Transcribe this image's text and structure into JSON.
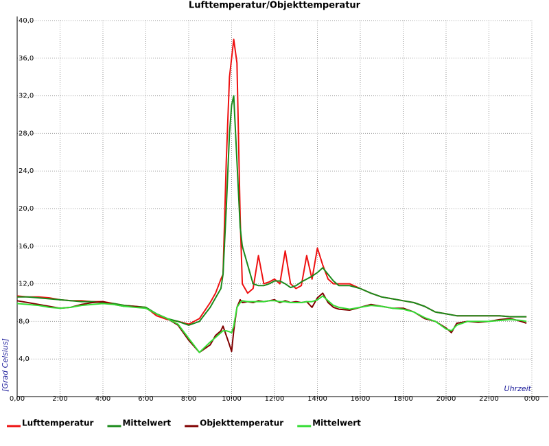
{
  "chart_data": {
    "type": "line",
    "title": "Lufttemperatur/Objekttemperatur",
    "y_label": "[Grad Celsius]",
    "x_label": "Uhrzeit",
    "x": [
      0,
      0.5,
      1,
      1.5,
      2,
      2.5,
      3,
      3.5,
      4,
      4.5,
      5,
      5.5,
      6,
      6.5,
      7,
      7.5,
      8,
      8.5,
      9,
      9.25,
      9.5,
      9.6,
      9.75,
      9.9,
      10,
      10.1,
      10.25,
      10.4,
      10.5,
      10.75,
      11,
      11.25,
      11.5,
      11.75,
      12,
      12.25,
      12.5,
      12.75,
      13,
      13.25,
      13.5,
      13.75,
      14,
      14.25,
      14.5,
      14.75,
      15,
      15.5,
      16,
      16.5,
      17,
      17.5,
      18,
      18.5,
      19,
      19.5,
      20,
      20.25,
      20.5,
      21,
      21.5,
      22,
      22.5,
      23,
      23.5,
      23.75
    ],
    "series": [
      {
        "name": "Lufttemperatur",
        "color": "#ee1111",
        "values": [
          10.7,
          10.6,
          10.6,
          10.5,
          10.3,
          10.2,
          10.2,
          10.1,
          10.1,
          9.9,
          9.7,
          9.6,
          9.5,
          8.6,
          8.2,
          8.0,
          7.7,
          8.3,
          10.0,
          11.0,
          12.5,
          13.0,
          25.0,
          34.0,
          36.0,
          38.0,
          35.5,
          19.0,
          12.0,
          11.0,
          11.5,
          15.0,
          12.0,
          12.2,
          12.5,
          12.0,
          15.5,
          12.0,
          11.5,
          11.8,
          15.0,
          12.5,
          15.8,
          14.0,
          12.5,
          12.0,
          12.0,
          12.0,
          11.5,
          11.0,
          10.6,
          10.4,
          10.2,
          10.0,
          9.6,
          9.0,
          8.8,
          8.7,
          8.6,
          8.6,
          8.6,
          8.6,
          8.6,
          8.5,
          8.5,
          8.5
        ]
      },
      {
        "name": "Mittelwert",
        "color": "#1a8a1a",
        "values": [
          10.6,
          10.6,
          10.5,
          10.4,
          10.3,
          10.2,
          10.1,
          10.1,
          10.0,
          9.9,
          9.7,
          9.6,
          9.5,
          8.8,
          8.3,
          8.0,
          7.6,
          8.0,
          9.5,
          10.5,
          11.5,
          13.0,
          20.0,
          28.0,
          31.0,
          32.0,
          25.0,
          18.0,
          16.0,
          14.0,
          12.0,
          11.8,
          11.8,
          12.0,
          12.3,
          12.3,
          12.0,
          11.6,
          11.8,
          12.2,
          12.5,
          12.8,
          13.2,
          13.7,
          13.0,
          12.3,
          11.8,
          11.8,
          11.5,
          11.0,
          10.6,
          10.4,
          10.2,
          10.0,
          9.6,
          9.0,
          8.8,
          8.7,
          8.6,
          8.6,
          8.6,
          8.6,
          8.6,
          8.5,
          8.5,
          8.5
        ]
      },
      {
        "name": "Objekttemperatur",
        "color": "#800000",
        "values": [
          10.2,
          10.0,
          9.8,
          9.6,
          9.4,
          9.5,
          9.8,
          10.0,
          10.1,
          9.8,
          9.6,
          9.6,
          9.4,
          8.8,
          8.3,
          7.6,
          6.0,
          4.7,
          5.5,
          6.5,
          7.0,
          7.5,
          6.5,
          5.5,
          4.8,
          7.0,
          9.5,
          10.3,
          10.0,
          10.1,
          10.0,
          10.2,
          10.1,
          10.2,
          10.3,
          10.0,
          10.2,
          10.0,
          10.1,
          10.0,
          10.1,
          9.5,
          10.5,
          11.0,
          10.0,
          9.5,
          9.3,
          9.2,
          9.5,
          9.8,
          9.6,
          9.4,
          9.4,
          9.0,
          8.3,
          8.0,
          7.3,
          6.8,
          7.8,
          8.0,
          7.9,
          8.0,
          8.2,
          8.3,
          8.0,
          7.8
        ]
      },
      {
        "name": "Mittelwert",
        "color": "#33dd33",
        "values": [
          9.9,
          9.8,
          9.7,
          9.5,
          9.4,
          9.5,
          9.7,
          9.8,
          9.9,
          9.8,
          9.6,
          9.5,
          9.4,
          8.8,
          8.3,
          7.7,
          6.2,
          4.7,
          5.8,
          6.3,
          6.8,
          7.0,
          7.0,
          6.9,
          6.8,
          7.5,
          9.5,
          10.0,
          10.2,
          10.1,
          10.1,
          10.1,
          10.1,
          10.2,
          10.2,
          10.1,
          10.1,
          10.0,
          10.0,
          10.0,
          10.1,
          10.1,
          10.3,
          10.7,
          10.2,
          9.7,
          9.5,
          9.3,
          9.5,
          9.7,
          9.6,
          9.4,
          9.3,
          9.0,
          8.4,
          8.0,
          7.2,
          7.0,
          7.6,
          8.0,
          8.0,
          8.0,
          8.1,
          8.2,
          8.1,
          8.0
        ]
      }
    ],
    "xlim": [
      0,
      24
    ],
    "xticks": [
      {
        "value": 0,
        "label": "0,00"
      },
      {
        "value": 2,
        "label": "2:00"
      },
      {
        "value": 4,
        "label": "4:00"
      },
      {
        "value": 6,
        "label": "6:00"
      },
      {
        "value": 8,
        "label": "8:00"
      },
      {
        "value": 10,
        "label": "10:00"
      },
      {
        "value": 12,
        "label": "12:00"
      },
      {
        "value": 14,
        "label": "14:00"
      },
      {
        "value": 16,
        "label": "16:00"
      },
      {
        "value": 18,
        "label": "18:00"
      },
      {
        "value": 20,
        "label": "20:00"
      },
      {
        "value": 22,
        "label": "22:00"
      },
      {
        "value": 24,
        "label": "0:00"
      }
    ],
    "ylim": [
      0,
      40
    ],
    "yticks": [
      {
        "value": 4,
        "label": "4,0"
      },
      {
        "value": 8,
        "label": "8,0"
      },
      {
        "value": 12,
        "label": "12,0"
      },
      {
        "value": 16,
        "label": "16,0"
      },
      {
        "value": 20,
        "label": "20,0"
      },
      {
        "value": 24,
        "label": "24,0"
      },
      {
        "value": 28,
        "label": "28,0"
      },
      {
        "value": 32,
        "label": "32,0"
      },
      {
        "value": 36,
        "label": "36,0"
      },
      {
        "value": 40,
        "label": "40,0"
      }
    ],
    "grid": true,
    "legend": "bottom"
  }
}
